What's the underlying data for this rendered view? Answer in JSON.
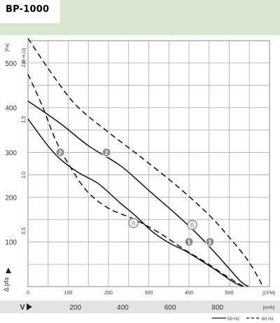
{
  "title": "BP-1000",
  "chart_data": {
    "type": "line",
    "x_ticks_cfm": [
      "0",
      "100",
      "200",
      "300",
      "400",
      "500"
    ],
    "x_unit_cfm": "[CFM]",
    "x_ticks_m3h": [
      "200",
      "400",
      "600",
      "800"
    ],
    "x_unit_m3h": "[m³/h]",
    "y_ticks_pa": [
      "100",
      "200",
      "300",
      "400",
      "500"
    ],
    "y_unit_pa": "[Pa]",
    "y_ticks_inh2o": [
      "0,5",
      "1,0",
      "1,5",
      "2,0"
    ],
    "y_unit_inh2o": "[in H₂O]",
    "y_axis_label": "Δ pfa",
    "x_axis_label": "V",
    "xlim_cfm": [
      0,
      600
    ],
    "ylim_pa": [
      0,
      550
    ],
    "grid": true,
    "legend_placement": "bottom-right",
    "legend": [
      {
        "label": "50 Hz",
        "style": "solid"
      },
      {
        "label": "60 Hz",
        "style": "dashed"
      }
    ],
    "series": [
      {
        "style": "solid",
        "points": [
          [
            0,
            375
          ],
          [
            45,
            320
          ],
          [
            80,
            285
          ],
          [
            125,
            255
          ],
          [
            175,
            230
          ],
          [
            225,
            190
          ],
          [
            265,
            160
          ],
          [
            310,
            122
          ],
          [
            350,
            98
          ],
          [
            390,
            80
          ],
          [
            430,
            58
          ],
          [
            470,
            35
          ],
          [
            510,
            10
          ],
          [
            535,
            0
          ]
        ]
      },
      {
        "style": "solid",
        "points": [
          [
            0,
            415
          ],
          [
            80,
            365
          ],
          [
            150,
            315
          ],
          [
            230,
            270
          ],
          [
            300,
            215
          ],
          [
            370,
            160
          ],
          [
            420,
            118
          ],
          [
            460,
            80
          ],
          [
            500,
            40
          ],
          [
            530,
            10
          ],
          [
            548,
            0
          ]
        ]
      },
      {
        "style": "dashed",
        "points": [
          [
            0,
            475
          ],
          [
            35,
            405
          ],
          [
            70,
            325
          ],
          [
            110,
            260
          ],
          [
            150,
            210
          ],
          [
            200,
            175
          ],
          [
            265,
            150
          ],
          [
            330,
            118
          ],
          [
            390,
            82
          ],
          [
            440,
            55
          ],
          [
            490,
            25
          ],
          [
            530,
            3
          ],
          [
            540,
            0
          ]
        ]
      },
      {
        "style": "dashed",
        "points": [
          [
            0,
            555
          ],
          [
            60,
            475
          ],
          [
            120,
            405
          ],
          [
            200,
            345
          ],
          [
            280,
            290
          ],
          [
            370,
            225
          ],
          [
            450,
            160
          ],
          [
            500,
            110
          ],
          [
            545,
            60
          ],
          [
            575,
            15
          ],
          [
            582,
            0
          ]
        ]
      }
    ],
    "operating_points": [
      {
        "label": "2",
        "x": 80,
        "y": 300
      },
      {
        "label": "2",
        "x": 195,
        "y": 300
      },
      {
        "label": "1",
        "x": 400,
        "y": 100
      },
      {
        "label": "1",
        "x": 452,
        "y": 100
      }
    ],
    "markers": [
      {
        "label": "A",
        "x": 262,
        "y": 142
      },
      {
        "label": "B",
        "x": 408,
        "y": 138
      }
    ]
  },
  "colors": {
    "header_band": "#d8e8d0",
    "x_axis_band": "#e3e3e3",
    "marker_green": "#4a9a5a",
    "operating_point_fill": "#8a8a8a"
  }
}
